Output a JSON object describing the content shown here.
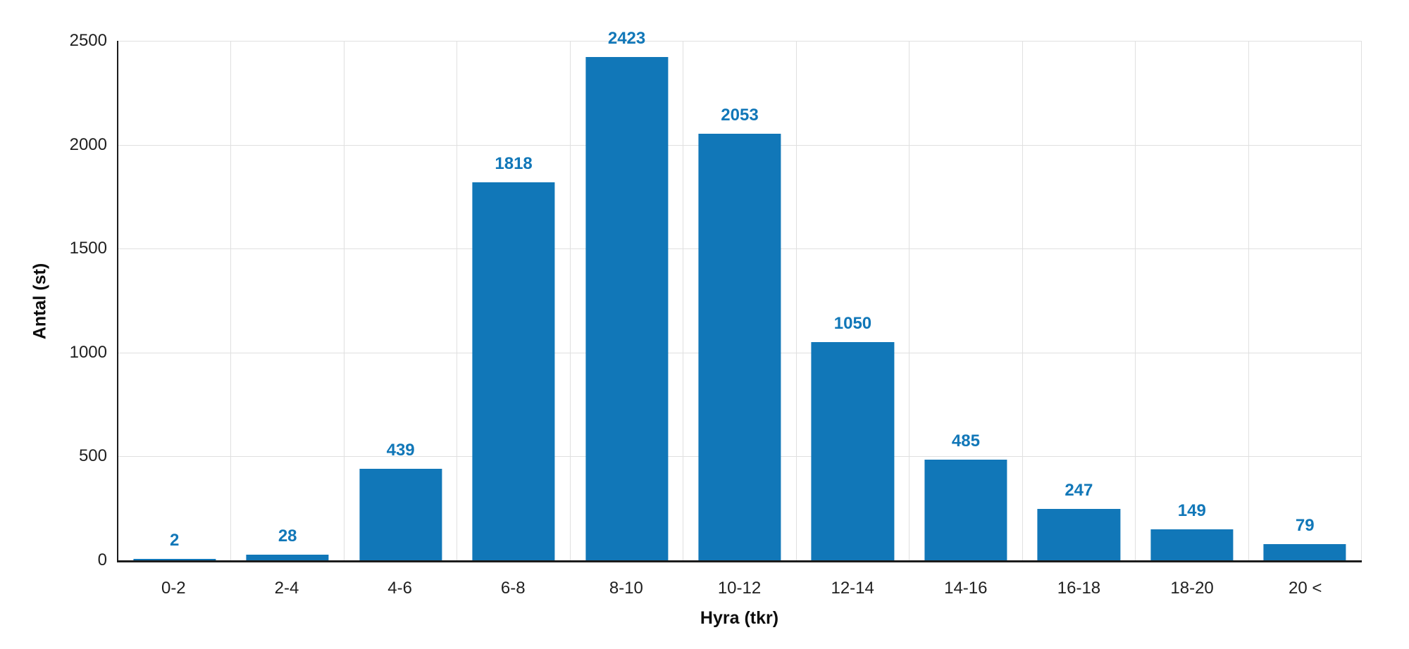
{
  "chart_data": {
    "type": "bar",
    "title": "",
    "categories": [
      "0-2",
      "2-4",
      "4-6",
      "6-8",
      "8-10",
      "10-12",
      "12-14",
      "14-16",
      "16-18",
      "18-20",
      "20 <"
    ],
    "values": [
      2,
      28,
      439,
      1818,
      2423,
      2053,
      1050,
      485,
      247,
      149,
      79
    ],
    "xlabel": "Hyra (tkr)",
    "ylabel": "Antal (st)",
    "ylim": [
      0,
      2500
    ],
    "y_ticks": [
      0,
      500,
      1000,
      1500,
      2000,
      2500
    ],
    "grid": true,
    "legend": false,
    "data_labels": true,
    "colors": {
      "bar": "#1177b8",
      "data_label": "#1177b8",
      "axis_line": "#1c1c1c",
      "gridline": "#e0e0e0",
      "tick_text": "#1f1f1f",
      "background": "#ffffff"
    }
  }
}
